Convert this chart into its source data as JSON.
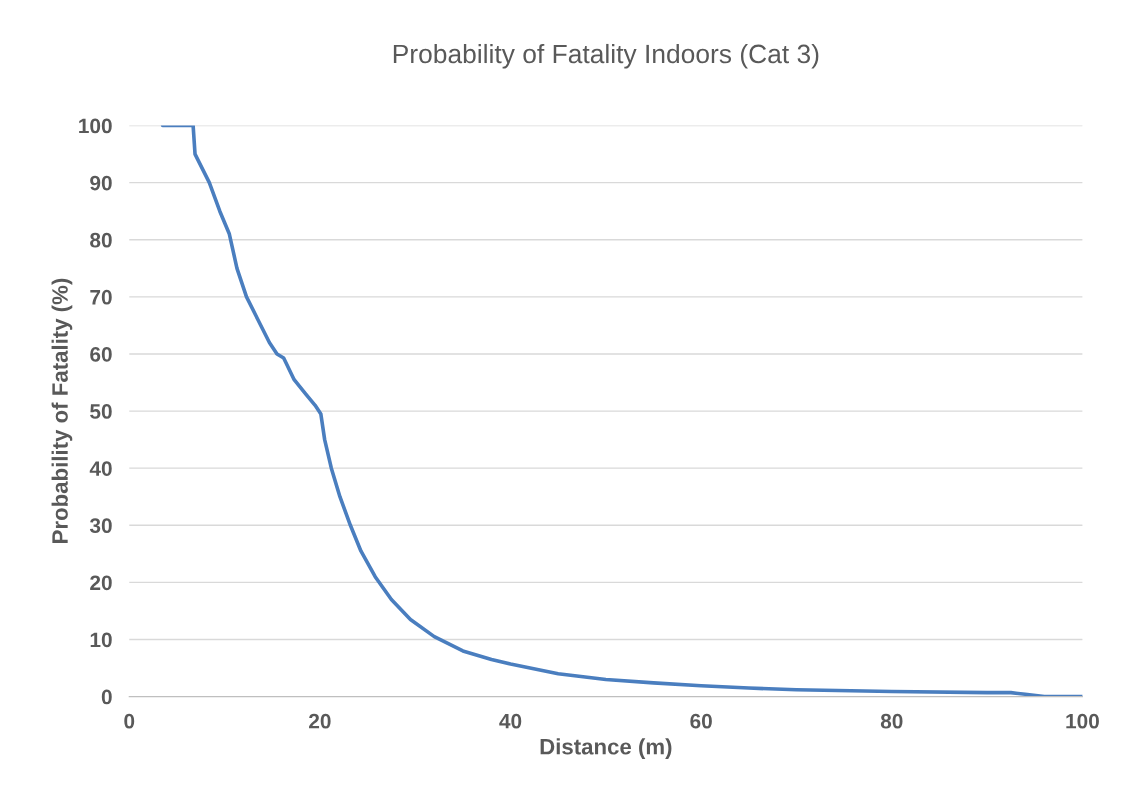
{
  "chart_data": {
    "type": "line",
    "title": "Probability of Fatality Indoors (Cat 3)",
    "xlabel": "Distance (m)",
    "ylabel": "Probability of Fatality (%)",
    "x": [
      3.5,
      6.7,
      6.9,
      8.4,
      9.5,
      10.5,
      11.3,
      12.3,
      13.5,
      14.7,
      15.5,
      16.2,
      17.3,
      18.5,
      19.5,
      20.1,
      20.5,
      21.2,
      22.1,
      23.2,
      24.3,
      25.8,
      27.5,
      29.5,
      32,
      35,
      38,
      40,
      45,
      50,
      55,
      60,
      65,
      70,
      80,
      90,
      92.5,
      94,
      96,
      100
    ],
    "series": [
      {
        "color": "#4a7ebf",
        "values": [
          100,
          100,
          95,
          90,
          85,
          81,
          75,
          70,
          66,
          62,
          60,
          59.3,
          55.5,
          53,
          51,
          49.5,
          45,
          40,
          35,
          30,
          25.5,
          21,
          17,
          13.5,
          10.5,
          8,
          6.5,
          5.7,
          4,
          3,
          2.4,
          1.9,
          1.5,
          1.2,
          0.9,
          0.7,
          0.7,
          0.4,
          0,
          0
        ]
      }
    ],
    "xlim": [
      0,
      100
    ],
    "xticks": [
      0,
      20,
      40,
      60,
      80,
      100
    ],
    "ylim": [
      0,
      100
    ],
    "yticks": [
      0,
      10,
      20,
      30,
      40,
      50,
      60,
      70,
      80,
      90,
      100
    ],
    "grid": "y",
    "legend": false,
    "marker": "none",
    "line_style": "solid"
  }
}
